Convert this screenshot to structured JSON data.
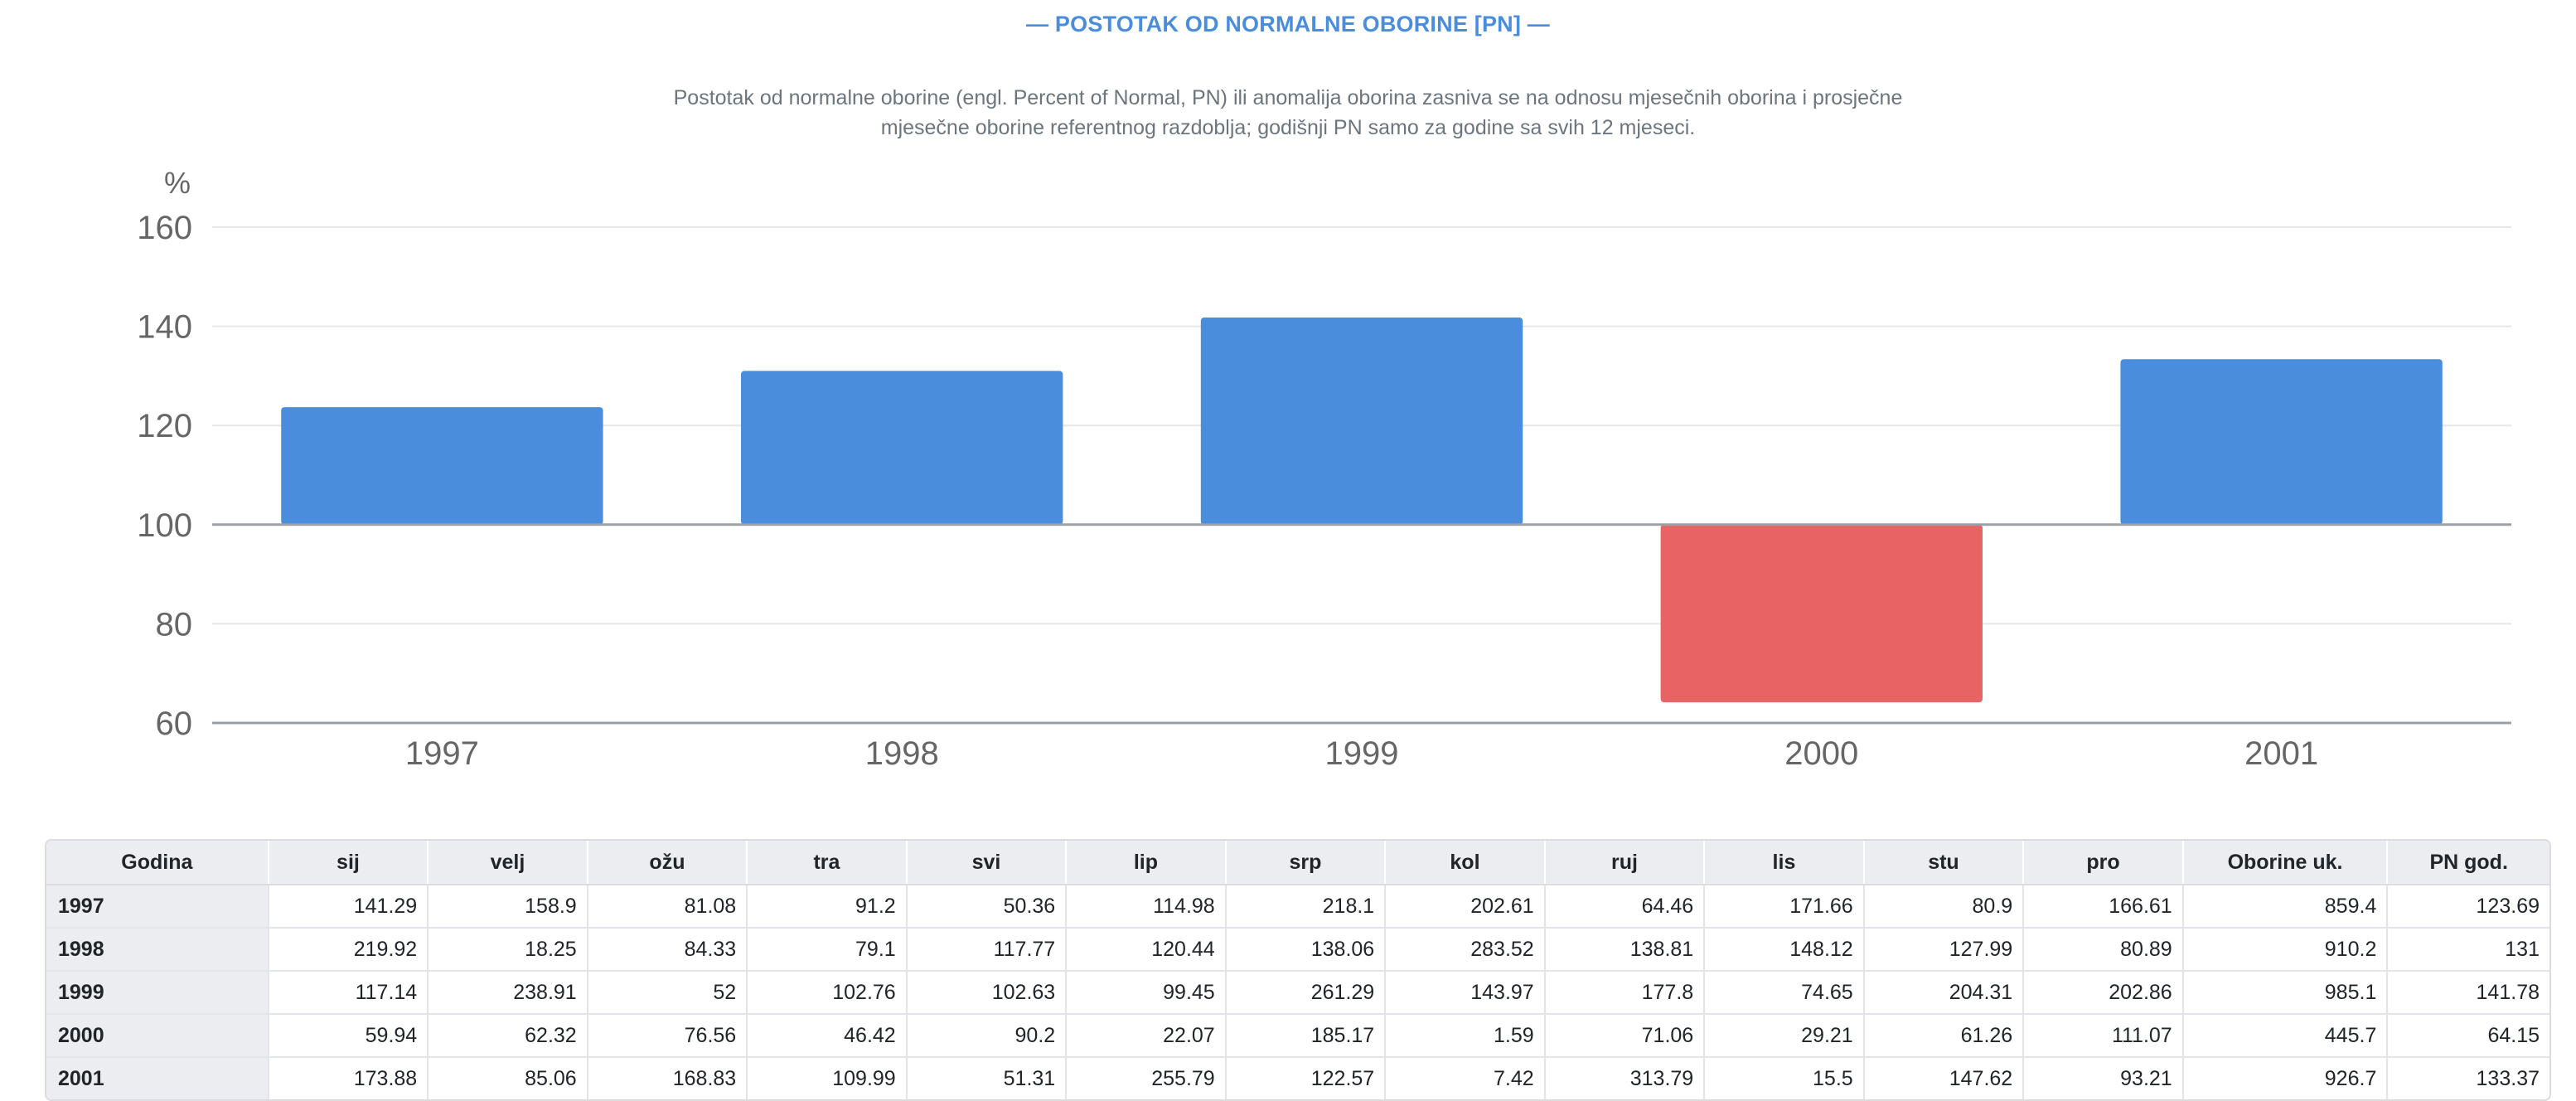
{
  "header": {
    "title": "— POSTOTAK OD NORMALNE OBORINE [PN] —",
    "description": "Postotak od normalne oborine (engl. Percent of Normal, PN) ili anomalija oborina zasniva se na odnosu mjesečnih oborina i prosječne mjesečne oborine referentnog razdoblja; godišnji PN samo za godine sa svih 12 mjeseci."
  },
  "colors": {
    "above": "#4a8ddc",
    "below": "#e86464",
    "grid": "#e6e6e6",
    "axis": "#9aa0a6"
  },
  "chart_data": {
    "type": "bar",
    "categories": [
      "1997",
      "1998",
      "1999",
      "2000",
      "2001"
    ],
    "values": [
      123.69,
      131,
      141.78,
      64.15,
      133.37
    ],
    "baseline": 100,
    "ylabel": "%",
    "ylim": [
      60,
      160
    ],
    "yticks": [
      60,
      80,
      100,
      120,
      140,
      160
    ],
    "grid": true,
    "legend": "none"
  },
  "table": {
    "headers": [
      "Godina",
      "sij",
      "velj",
      "ožu",
      "tra",
      "svi",
      "lip",
      "srp",
      "kol",
      "ruj",
      "lis",
      "stu",
      "pro",
      "Oborine uk.",
      "PN god."
    ],
    "rows": [
      [
        "1997",
        "141.29",
        "158.9",
        "81.08",
        "91.2",
        "50.36",
        "114.98",
        "218.1",
        "202.61",
        "64.46",
        "171.66",
        "80.9",
        "166.61",
        "859.4",
        "123.69"
      ],
      [
        "1998",
        "219.92",
        "18.25",
        "84.33",
        "79.1",
        "117.77",
        "120.44",
        "138.06",
        "283.52",
        "138.81",
        "148.12",
        "127.99",
        "80.89",
        "910.2",
        "131"
      ],
      [
        "1999",
        "117.14",
        "238.91",
        "52",
        "102.76",
        "102.63",
        "99.45",
        "261.29",
        "143.97",
        "177.8",
        "74.65",
        "204.31",
        "202.86",
        "985.1",
        "141.78"
      ],
      [
        "2000",
        "59.94",
        "62.32",
        "76.56",
        "46.42",
        "90.2",
        "22.07",
        "185.17",
        "1.59",
        "71.06",
        "29.21",
        "61.26",
        "111.07",
        "445.7",
        "64.15"
      ],
      [
        "2001",
        "173.88",
        "85.06",
        "168.83",
        "109.99",
        "51.31",
        "255.79",
        "122.57",
        "7.42",
        "313.79",
        "15.5",
        "147.62",
        "93.21",
        "926.7",
        "133.37"
      ]
    ]
  }
}
